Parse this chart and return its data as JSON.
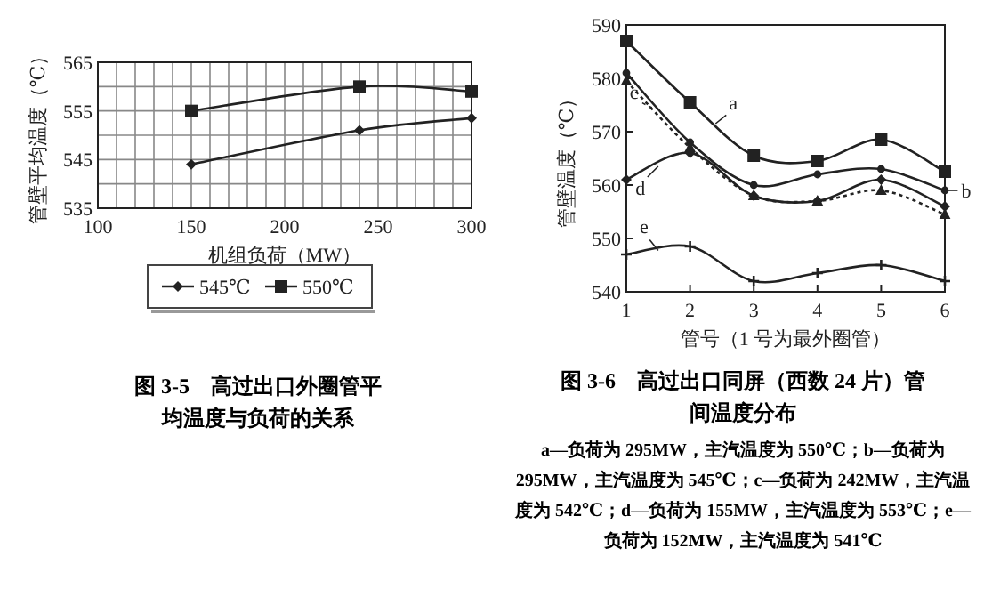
{
  "chart_data": [
    {
      "type": "line",
      "title": "图 3-5　高过出口外圈管平均温度与负荷的关系",
      "xlabel": "机组负荷（MW）",
      "ylabel": "管壁平均温度（℃）",
      "xlim": [
        100,
        300
      ],
      "xticks": [
        100,
        {
          "value": 110,
          "label": null
        },
        {
          "value": 120,
          "label": null
        },
        {
          "value": 130,
          "label": null
        },
        {
          "value": 140,
          "label": null
        },
        150,
        {
          "value": 160,
          "label": null
        },
        {
          "value": 170,
          "label": null
        },
        {
          "value": 180,
          "label": null
        },
        {
          "value": 190,
          "label": null
        },
        200,
        {
          "value": 210,
          "label": null
        },
        {
          "value": 220,
          "label": null
        },
        {
          "value": 230,
          "label": null
        },
        {
          "value": 240,
          "label": null
        },
        250,
        {
          "value": 260,
          "label": null
        },
        {
          "value": 270,
          "label": null
        },
        {
          "value": 280,
          "label": null
        },
        {
          "value": 290,
          "label": null
        },
        300
      ],
      "ylim": [
        535,
        565
      ],
      "yticks": [
        535,
        {
          "value": 540,
          "label": null
        },
        545,
        {
          "value": 550,
          "label": null
        },
        555,
        {
          "value": 560,
          "label": null
        },
        565
      ],
      "grid": true,
      "legend": "bottom",
      "x": [
        150,
        240,
        300
      ],
      "series": [
        {
          "name": "545℃",
          "color": "#222222",
          "marker": "diamond",
          "values": [
            544,
            551,
            553.5
          ]
        },
        {
          "name": "550℃",
          "color": "#222222",
          "marker": "square",
          "values": [
            555,
            560,
            559
          ]
        }
      ]
    },
    {
      "type": "line",
      "title": "图 3-6　高过出口同屏（西数 24 片）管间温度分布",
      "xlabel": "管号（1 号为最外圈管）",
      "ylabel": "管壁温度（℃）",
      "annotations": [
        "a—负荷为 295MW，主汽温度为 550℃；b—负荷为 295MW，主汽温度为 545℃；c—负荷为 242MW，主汽温度为 542℃；d—负荷为 155MW，主汽温度为 553℃；e—负荷为 152MW，主汽温度为 541℃"
      ],
      "xlim": [
        1,
        6
      ],
      "xticks": [
        1,
        2,
        3,
        4,
        5,
        6
      ],
      "ylim": [
        540,
        590
      ],
      "yticks": [
        540,
        550,
        560,
        570,
        580,
        590
      ],
      "x": [
        1,
        2,
        3,
        4,
        5,
        6
      ],
      "series": [
        {
          "name": "a",
          "color": "#222222",
          "marker": "square",
          "values": [
            587,
            575.5,
            565.5,
            564.5,
            568.5,
            562.5
          ]
        },
        {
          "name": "b",
          "color": "#222222",
          "marker": "circle",
          "values": [
            581,
            568,
            560,
            562,
            563,
            559
          ]
        },
        {
          "name": "c",
          "color": "#222222",
          "marker": "triangle",
          "line_style": "dotted",
          "values": [
            579.5,
            567,
            558,
            557,
            559,
            554.5
          ]
        },
        {
          "name": "d",
          "color": "#222222",
          "marker": "diamond",
          "values": [
            561,
            566,
            558,
            557,
            561,
            556
          ]
        },
        {
          "name": "e",
          "color": "#222222",
          "marker": "cross",
          "values": [
            547,
            548.5,
            542,
            543.5,
            545,
            542
          ]
        }
      ]
    }
  ]
}
